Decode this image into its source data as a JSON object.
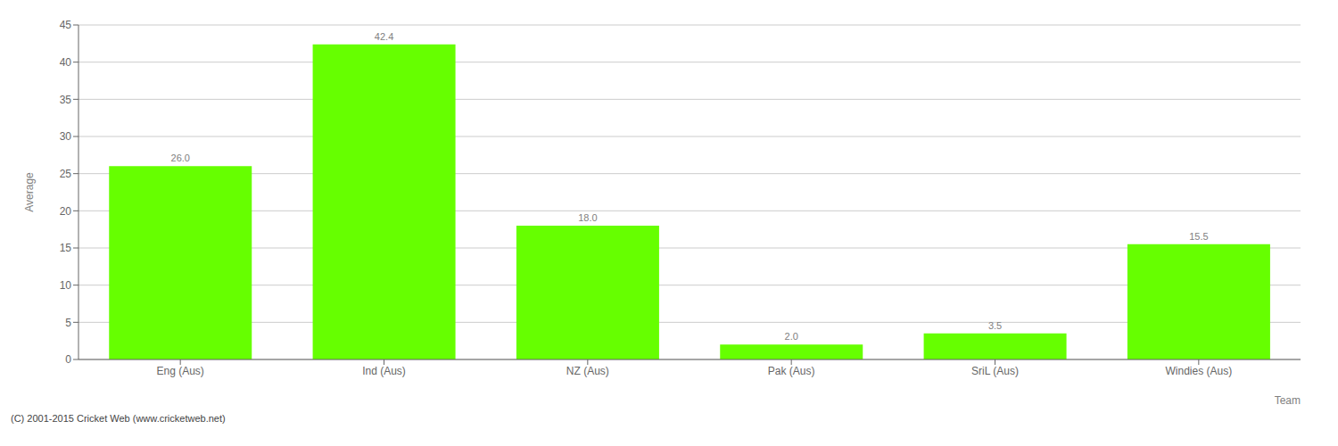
{
  "chart_data": {
    "type": "bar",
    "categories": [
      "Eng (Aus)",
      "Ind (Aus)",
      "NZ (Aus)",
      "Pak (Aus)",
      "SriL (Aus)",
      "Windies (Aus)"
    ],
    "values": [
      26.0,
      42.4,
      18.0,
      2.0,
      3.5,
      15.5
    ],
    "value_labels": [
      "26.0",
      "42.4",
      "18.0",
      "2.0",
      "3.5",
      "15.5"
    ],
    "data_labels": true,
    "color": "#66ff00",
    "xlabel": "Team",
    "ylabel": "Average",
    "ylim": [
      0,
      45
    ],
    "yticks": [
      0,
      5,
      10,
      15,
      20,
      25,
      30,
      35,
      40,
      45
    ],
    "grid": true,
    "annotations": [
      "(C) 2001-2015 Cricket Web (www.cricketweb.net)"
    ]
  }
}
